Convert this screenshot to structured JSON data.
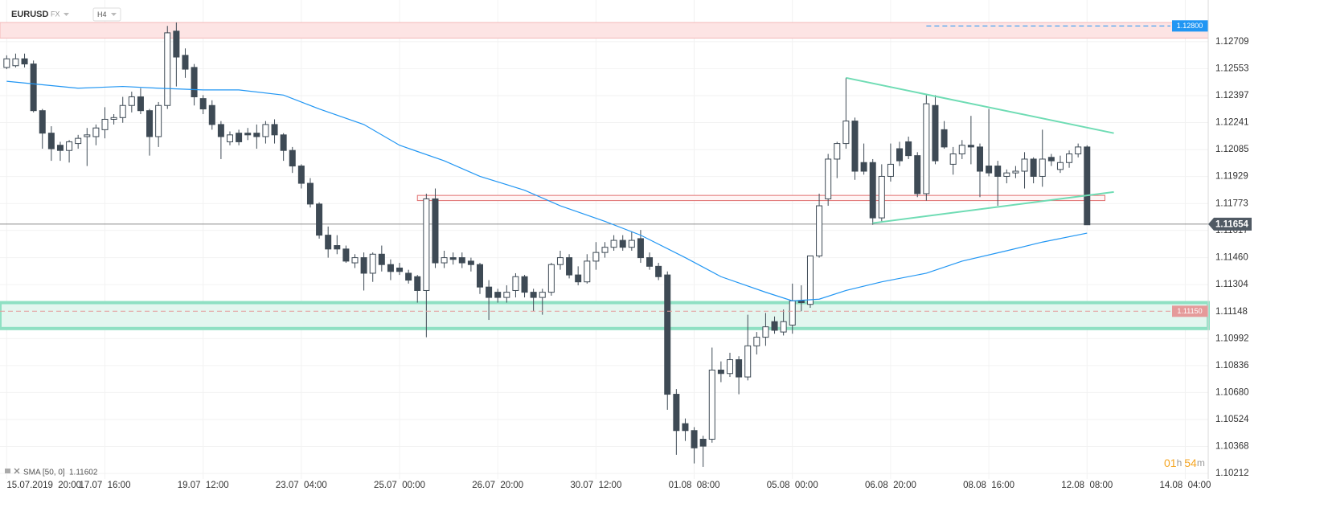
{
  "header": {
    "symbol": "EURUSD",
    "market": "FX",
    "timeframe": "H4"
  },
  "chart_data": {
    "type": "candlestick",
    "open": [
      1.1256,
      1.1257,
      1.1261,
      1.1258,
      1.1231,
      1.1218,
      1.1211,
      1.1208,
      1.1212,
      1.1216,
      1.1216,
      1.122,
      1.1226,
      1.1227,
      1.1234,
      1.1239,
      1.1231,
      1.1216,
      1.1234,
      1.1277,
      1.1263,
      1.1256,
      1.1238,
      1.1234,
      1.1223,
      1.1213,
      1.1218,
      1.1218,
      1.1218,
      1.1216,
      1.1223,
      1.1217,
      1.1208,
      1.1199,
      1.1189,
      1.1177,
      1.1159,
      1.1153,
      1.1151,
      1.1143,
      1.1146,
      1.1137,
      1.1148,
      1.1142,
      1.114,
      1.1137,
      1.1135,
      1.1127,
      1.118,
      1.1143,
      1.1146,
      1.1146,
      1.1144,
      1.1142,
      1.1129,
      1.1126,
      1.1123,
      1.1127,
      1.1135,
      1.1126,
      1.1123,
      1.1126,
      1.1142,
      1.1146,
      1.1136,
      1.1132,
      1.1144,
      1.1149,
      1.1152,
      1.1156,
      1.1152,
      1.1157,
      1.1146,
      1.1141,
      1.1136,
      1.1067,
      1.105,
      1.1046,
      1.1041,
      1.1041,
      1.1081,
      1.1079,
      1.1087,
      1.1077,
      1.1095,
      1.11,
      1.1109,
      1.1103,
      1.1107,
      1.1121,
      1.1119,
      1.1147,
      1.118,
      1.1203,
      1.1212,
      1.1225,
      1.1201,
      1.1201,
      1.1169,
      1.1193,
      1.1209,
      1.1213,
      1.1205,
      1.1183,
      1.1234,
      1.122,
      1.12,
      1.1206,
      1.1211,
      1.121,
      1.1199,
      1.1199,
      1.1193,
      1.1195,
      1.1196,
      1.1203,
      1.1193,
      1.1204,
      1.1197,
      1.1201,
      1.1206,
      1.121
    ],
    "high": [
      1.1263,
      1.1264,
      1.1264,
      1.126,
      1.1232,
      1.1222,
      1.1213,
      1.1214,
      1.1217,
      1.1221,
      1.1223,
      1.1233,
      1.1229,
      1.1239,
      1.1242,
      1.1244,
      1.1232,
      1.1236,
      1.128,
      1.1282,
      1.1267,
      1.1258,
      1.124,
      1.1237,
      1.1225,
      1.1219,
      1.122,
      1.1221,
      1.1223,
      1.1225,
      1.1226,
      1.1218,
      1.121,
      1.12,
      1.1192,
      1.1178,
      1.1164,
      1.1159,
      1.1153,
      1.1148,
      1.1149,
      1.1149,
      1.1153,
      1.1145,
      1.1143,
      1.1139,
      1.1136,
      1.1183,
      1.1186,
      1.115,
      1.1149,
      1.1149,
      1.1146,
      1.1143,
      1.1133,
      1.1128,
      1.113,
      1.1137,
      1.1136,
      1.1128,
      1.1128,
      1.1143,
      1.115,
      1.1148,
      1.1141,
      1.1148,
      1.1155,
      1.1155,
      1.1159,
      1.1159,
      1.1161,
      1.1162,
      1.1149,
      1.1143,
      1.1138,
      1.107,
      1.1053,
      1.1048,
      1.1043,
      1.1094,
      1.1086,
      1.1091,
      1.1089,
      1.1113,
      1.1103,
      1.1114,
      1.1112,
      1.1116,
      1.1131,
      1.113,
      1.1147,
      1.1183,
      1.1206,
      1.1213,
      1.125,
      1.1227,
      1.1212,
      1.1203,
      1.12,
      1.1212,
      1.1213,
      1.1216,
      1.1207,
      1.124,
      1.124,
      1.1225,
      1.121,
      1.1214,
      1.1228,
      1.1212,
      1.1232,
      1.1202,
      1.1197,
      1.1199,
      1.1207,
      1.1204,
      1.122,
      1.1206,
      1.1205,
      1.1208,
      1.1212,
      1.1211
    ],
    "low": [
      1.1255,
      1.1256,
      1.1256,
      1.123,
      1.1209,
      1.1202,
      1.1202,
      1.1201,
      1.1209,
      1.1199,
      1.1211,
      1.1215,
      1.1223,
      1.1224,
      1.123,
      1.1229,
      1.1205,
      1.121,
      1.1232,
      1.1245,
      1.125,
      1.1234,
      1.1229,
      1.122,
      1.1203,
      1.1211,
      1.1211,
      1.1214,
      1.1209,
      1.1212,
      1.1212,
      1.1202,
      1.1195,
      1.1186,
      1.1175,
      1.1157,
      1.1146,
      1.1148,
      1.1143,
      1.114,
      1.1127,
      1.1132,
      1.1138,
      1.1133,
      1.1136,
      1.1131,
      1.112,
      1.11,
      1.114,
      1.114,
      1.1142,
      1.114,
      1.1138,
      1.1125,
      1.111,
      1.112,
      1.112,
      1.1123,
      1.1123,
      1.1115,
      1.1113,
      1.1124,
      1.1139,
      1.1134,
      1.113,
      1.1131,
      1.1139,
      1.1146,
      1.115,
      1.115,
      1.115,
      1.1143,
      1.1139,
      1.1133,
      1.1058,
      1.1032,
      1.104,
      1.1027,
      1.1025,
      1.1039,
      1.1074,
      1.1077,
      1.1067,
      1.1075,
      1.109,
      1.1095,
      1.1102,
      1.1101,
      1.1102,
      1.1115,
      1.1117,
      1.1146,
      1.1176,
      1.1192,
      1.1209,
      1.1191,
      1.1194,
      1.1165,
      1.1167,
      1.119,
      1.1199,
      1.1203,
      1.1181,
      1.1179,
      1.12,
      1.1209,
      1.1194,
      1.1203,
      1.12,
      1.1181,
      1.1193,
      1.1176,
      1.1189,
      1.1192,
      1.1186,
      1.1189,
      1.1187,
      1.1199,
      1.1195,
      1.1198,
      1.1204,
      1.1165
    ],
    "close": [
      1.1261,
      1.1261,
      1.1258,
      1.1231,
      1.1218,
      1.1209,
      1.1208,
      1.1213,
      1.1215,
      1.1217,
      1.1221,
      1.1226,
      1.1227,
      1.1234,
      1.1239,
      1.1231,
      1.1216,
      1.1234,
      1.1276,
      1.1262,
      1.1255,
      1.1239,
      1.1232,
      1.1223,
      1.1216,
      1.1217,
      1.1213,
      1.1217,
      1.1216,
      1.1223,
      1.1217,
      1.1208,
      1.1199,
      1.1189,
      1.1177,
      1.1159,
      1.1151,
      1.1151,
      1.1144,
      1.1146,
      1.1137,
      1.1148,
      1.1142,
      1.1138,
      1.1138,
      1.1133,
      1.1127,
      1.118,
      1.1143,
      1.1146,
      1.1145,
      1.1143,
      1.1142,
      1.1129,
      1.1123,
      1.1123,
      1.1126,
      1.1135,
      1.1126,
      1.1123,
      1.1126,
      1.1142,
      1.1146,
      1.1136,
      1.1132,
      1.1144,
      1.1149,
      1.1152,
      1.1156,
      1.1152,
      1.1156,
      1.1146,
      1.1141,
      1.1135,
      1.1067,
      1.1046,
      1.1046,
      1.1036,
      1.1037,
      1.1081,
      1.1079,
      1.1087,
      1.1077,
      1.1095,
      1.11,
      1.1106,
      1.1104,
      1.1109,
      1.1121,
      1.112,
      1.1147,
      1.1176,
      1.1203,
      1.1212,
      1.1225,
      1.1196,
      1.1196,
      1.1169,
      1.1193,
      1.12,
      1.1202,
      1.1205,
      1.1183,
      1.1235,
      1.1202,
      1.121,
      1.1206,
      1.1211,
      1.121,
      1.1196,
      1.1195,
      1.1193,
      1.1195,
      1.1196,
      1.1203,
      1.1193,
      1.1203,
      1.1202,
      1.1201,
      1.1206,
      1.121,
      1.1165
    ],
    "color_up": "#ffffff",
    "color_down": "#3e4a55",
    "xlim": [
      -0.75,
      134.3
    ],
    "xticks": [
      {
        "value": 0,
        "label": "15.07.2019  20:00"
      },
      {
        "value": 11,
        "label": "17.07  16:00"
      },
      {
        "value": 22,
        "label": "19.07  12:00"
      },
      {
        "value": 33,
        "label": "23.07  04:00"
      },
      {
        "value": 44,
        "label": "25.07  00:00"
      },
      {
        "value": 55,
        "label": "26.07  20:00"
      },
      {
        "value": 66,
        "label": "30.07  12:00"
      },
      {
        "value": 77,
        "label": "01.08  08:00"
      },
      {
        "value": 88,
        "label": "05.08  00:00"
      },
      {
        "value": 99,
        "label": "06.08  20:00"
      },
      {
        "value": 110,
        "label": "08.08  16:00"
      },
      {
        "value": 121,
        "label": "12.08  08:00"
      },
      {
        "value": 132,
        "label": "14.08  04:00"
      }
    ],
    "ylim": [
      1.1018,
      1.1295
    ],
    "yticks": [
      1.12709,
      1.12553,
      1.12397,
      1.12241,
      1.12085,
      1.11929,
      1.11773,
      1.11617,
      {
        "value": 1.1146,
        "label": "1.11460"
      },
      1.11304,
      1.11148,
      1.10992,
      1.10836,
      {
        "value": 1.1068,
        "label": "1.10680"
      },
      1.10524,
      1.10368,
      1.10212
    ],
    "grid": true,
    "sma": {
      "name": "SMA [50, 0]",
      "color": "#2196f3",
      "x": [
        0,
        8,
        13,
        17,
        22,
        26,
        31,
        35,
        40,
        44,
        49,
        53,
        58,
        62,
        67,
        71,
        76,
        80,
        85,
        88,
        91,
        94,
        98,
        103,
        107,
        112,
        116,
        121
      ],
      "values": [
        1.1248,
        1.1244,
        1.1245,
        1.1244,
        1.1243,
        1.1243,
        1.124,
        1.1232,
        1.1223,
        1.1211,
        1.1202,
        1.1193,
        1.1185,
        1.1176,
        1.1167,
        1.1159,
        1.1146,
        1.1135,
        1.1126,
        1.1121,
        1.1122,
        1.1127,
        1.1132,
        1.1137,
        1.1144,
        1.115,
        1.1155,
        1.11602
      ]
    },
    "zones": [
      {
        "from": 1.1273,
        "to": 1.1282,
        "start": -0.75,
        "fill": "#fde4e4",
        "stroke": "#f3b9b9"
      },
      {
        "from": 1.1105,
        "to": 1.112,
        "start": -0.75,
        "fill": "#e3f6ef",
        "stroke": "#8fe0c3"
      },
      {
        "from": 1.1179,
        "to": 1.1182,
        "start": 46,
        "end": 123,
        "fill": "#fff5f5",
        "stroke": "#e07070"
      }
    ],
    "trendlines": [
      {
        "x": [
          94,
          124
        ],
        "values": [
          1.125,
          1.1218
        ],
        "color": "#6fdcb4"
      },
      {
        "x": [
          97,
          124
        ],
        "values": [
          1.1166,
          1.1184
        ],
        "color": "#6fdcb4"
      }
    ],
    "levels": [
      {
        "value": 1.128,
        "label": "1.12800",
        "start": 103,
        "color": "#2196f3"
      },
      {
        "value": 1.1115,
        "label": "1.11150",
        "start": -0.75,
        "color": "#e59a9a"
      }
    ],
    "current_price": 1.11654,
    "timer": [
      "01",
      "h",
      "54",
      "m"
    ]
  }
}
